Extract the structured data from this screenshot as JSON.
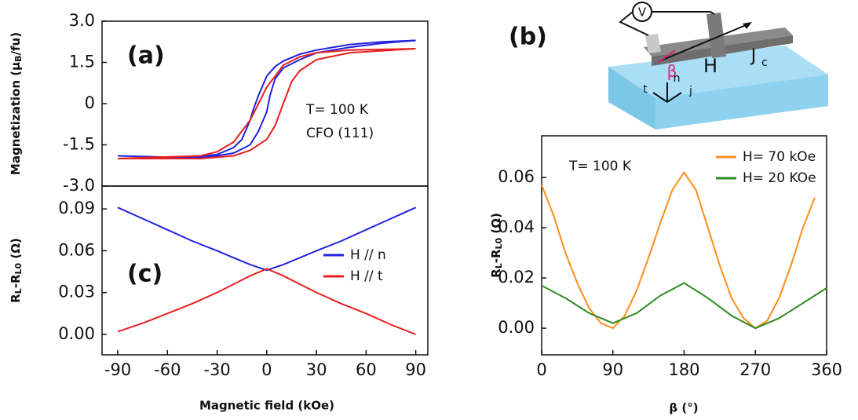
{
  "chart_data": [
    {
      "type": "line",
      "panel": "(a)",
      "annotations": [
        "T= 100 K",
        "CFO (111)"
      ],
      "y_label": [
        "Magnetization (μ",
        "B",
        "/fu)"
      ],
      "xlim": [
        -99.5,
        97.3
      ],
      "ylim": [
        -3,
        3
      ],
      "yticks": [
        {
          "value": 3,
          "label": "3.0"
        },
        1.5,
        0,
        -1.5,
        {
          "value": -3,
          "label": "-3.0"
        }
      ],
      "series": [
        {
          "color": "#2222e0",
          "x": [
            -90,
            -60,
            -40,
            -30,
            -20,
            -10,
            -5,
            0,
            2,
            5,
            10,
            20,
            30,
            50,
            70,
            90,
            70,
            50,
            30,
            20,
            10,
            5,
            0,
            -5,
            -8,
            -10,
            -15,
            -20,
            -30,
            -40,
            -60,
            -90
          ],
          "values": [
            -1.9,
            -1.95,
            -1.95,
            -1.9,
            -1.8,
            -1.5,
            -1.0,
            -0.3,
            0.3,
            0.9,
            1.3,
            1.6,
            1.85,
            2.05,
            2.2,
            2.3,
            2.25,
            2.15,
            1.95,
            1.8,
            1.55,
            1.35,
            1.0,
            0.3,
            -0.2,
            -0.6,
            -1.3,
            -1.6,
            -1.85,
            -1.92,
            -1.95,
            -1.9
          ]
        },
        {
          "color": "#e82020",
          "x": [
            -90,
            -40,
            -20,
            -10,
            0,
            5,
            10,
            15,
            20,
            30,
            50,
            90,
            50,
            30,
            20,
            10,
            0,
            -5,
            -10,
            -20,
            -30,
            -40,
            -90
          ],
          "values": [
            -2.0,
            -2.0,
            -1.9,
            -1.7,
            -1.3,
            -0.8,
            0,
            0.8,
            1.2,
            1.6,
            1.85,
            2.0,
            1.95,
            1.85,
            1.7,
            1.4,
            0.6,
            0,
            -0.6,
            -1.4,
            -1.75,
            -1.9,
            -2.0
          ]
        }
      ]
    },
    {
      "type": "line",
      "panel": "(c)",
      "legend": "right",
      "y_label": [
        "R",
        "L",
        "-R",
        "L0",
        " (Ω)"
      ],
      "x_label": "Magnetic field (kOe)",
      "xlim": [
        -99.5,
        97.3
      ],
      "ylim": [
        -0.0147,
        0.1064
      ],
      "xticks": [
        -90,
        -60,
        -30,
        0,
        30,
        60,
        90
      ],
      "yticks": [
        0.09,
        0.06,
        0.03,
        {
          "value": 0,
          "label": "0.00"
        }
      ],
      "series": [
        {
          "name": "H // n",
          "color": "#2222e0",
          "x": [
            -90,
            -75,
            -60,
            -45,
            -30,
            -20,
            -10,
            0,
            10,
            20,
            30,
            45,
            60,
            75,
            90
          ],
          "values": [
            0.091,
            0.083,
            0.075,
            0.067,
            0.06,
            0.055,
            0.05,
            0.046,
            0.05,
            0.055,
            0.06,
            0.067,
            0.075,
            0.083,
            0.091
          ]
        },
        {
          "name": "H // t",
          "color": "#e82020",
          "x": [
            -90,
            -75,
            -60,
            -45,
            -30,
            -20,
            -10,
            0,
            10,
            20,
            30,
            45,
            60,
            75,
            90
          ],
          "values": [
            0.002,
            0.008,
            0.015,
            0.022,
            0.03,
            0.036,
            0.042,
            0.047,
            0.042,
            0.036,
            0.03,
            0.022,
            0.015,
            0.007,
            0.0
          ]
        }
      ]
    },
    {
      "type": "line",
      "panel": "(b)",
      "legend": "upper right",
      "annotations": [
        "T= 100 K"
      ],
      "y_label": [
        "R",
        "L",
        "-R",
        "L0",
        " (Ω)"
      ],
      "x_label": "β (°)",
      "xlim": [
        0,
        360
      ],
      "ylim": [
        -0.0106,
        0.0766
      ],
      "xticks": [
        0,
        90,
        180,
        270,
        360
      ],
      "yticks": [
        0.06,
        0.04,
        0.02,
        {
          "value": 0,
          "label": "0.00"
        }
      ],
      "series": [
        {
          "name": "H= 70 kOe",
          "color": "#ff8c1a",
          "x": [
            0,
            15,
            30,
            45,
            60,
            75,
            90,
            105,
            120,
            135,
            150,
            165,
            180,
            195,
            210,
            225,
            240,
            255,
            270,
            285,
            300,
            315,
            330,
            345
          ],
          "values": [
            0.057,
            0.045,
            0.03,
            0.018,
            0.008,
            0.002,
            0.0,
            0.005,
            0.015,
            0.028,
            0.042,
            0.055,
            0.062,
            0.055,
            0.04,
            0.025,
            0.012,
            0.004,
            0.0,
            0.003,
            0.012,
            0.025,
            0.04,
            0.052
          ]
        },
        {
          "name": "H= 20 KOe",
          "color": "#2e8b22",
          "x": [
            0,
            30,
            60,
            90,
            120,
            150,
            180,
            210,
            240,
            270,
            300,
            330,
            360
          ],
          "values": [
            0.017,
            0.012,
            0.006,
            0.002,
            0.006,
            0.013,
            0.018,
            0.012,
            0.005,
            0.0,
            0.004,
            0.01,
            0.016
          ]
        }
      ]
    }
  ],
  "diagram": {
    "labels": [
      "V",
      "H",
      "J",
      "c",
      "β",
      "n",
      "t",
      "j"
    ]
  }
}
